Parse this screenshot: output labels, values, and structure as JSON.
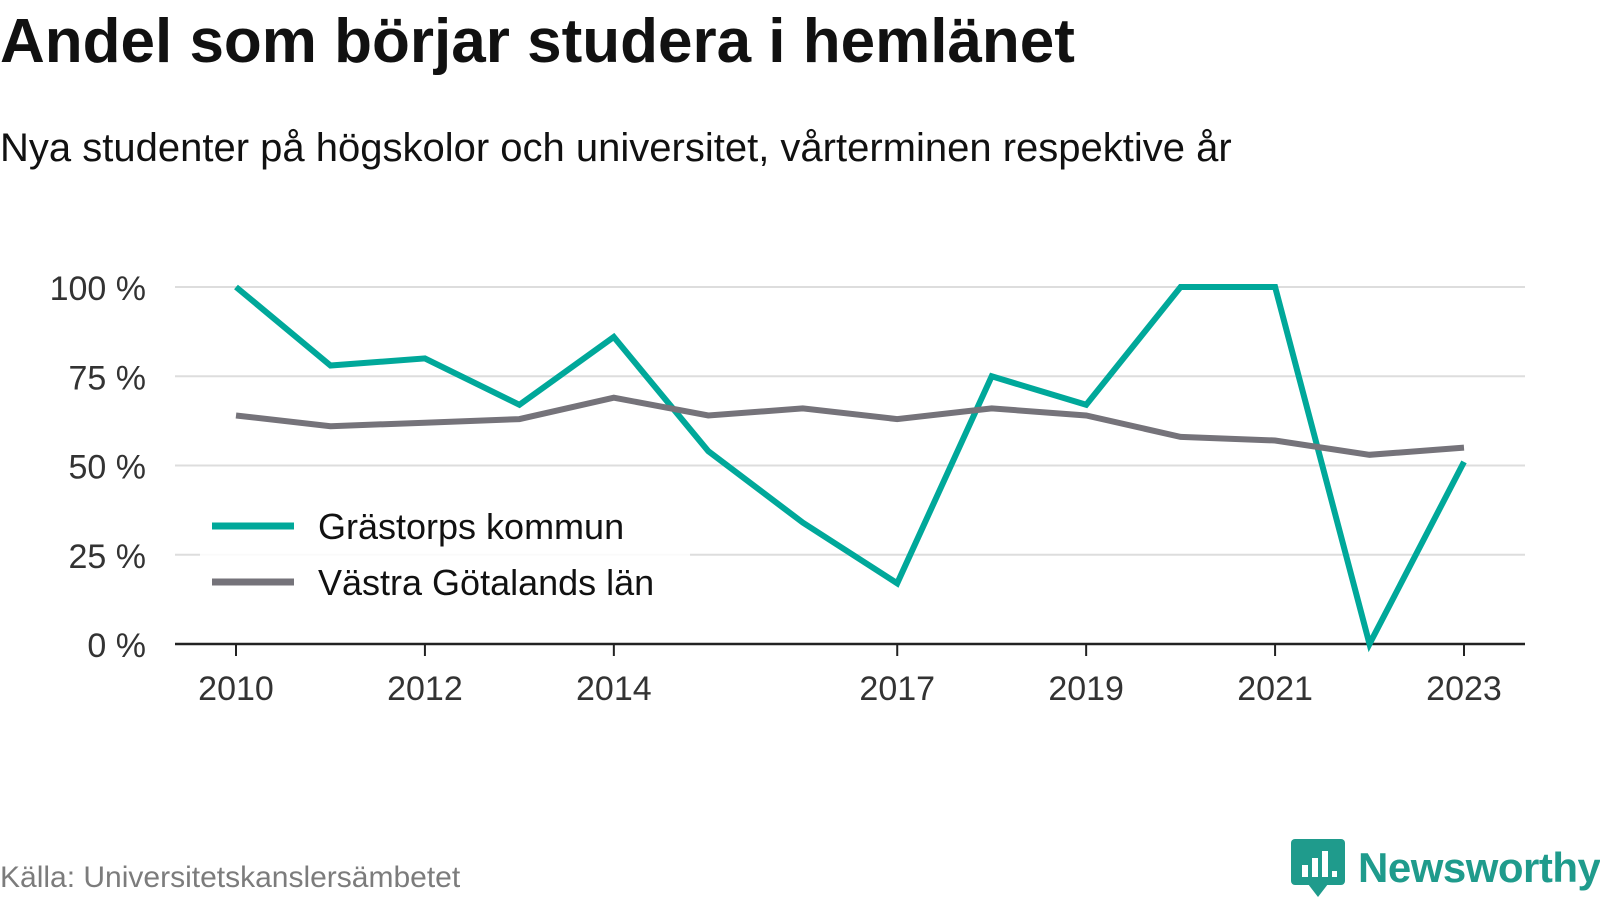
{
  "title": "Andel som börjar studera i hemlänet",
  "subtitle": "Nya studenter på högskolor och universitet, vårterminen respektive år",
  "source": "Källa: Universitetskanslersämbetet",
  "brand": {
    "name": "Newsworthy",
    "icon": "newsworthy-logo-icon",
    "color": "#1f9b8c"
  },
  "chart_data": {
    "type": "line",
    "x": [
      2010,
      2011,
      2012,
      2013,
      2014,
      2015,
      2016,
      2017,
      2018,
      2019,
      2020,
      2021,
      2022,
      2023
    ],
    "xticks": [
      2010,
      2012,
      2014,
      2017,
      2019,
      2021,
      2023
    ],
    "xtick_labels": [
      "2010",
      "2012",
      "2014",
      "2017",
      "2019",
      "2021",
      "2023"
    ],
    "ylim": [
      0,
      100
    ],
    "yticks": [
      0,
      25,
      50,
      75,
      100
    ],
    "ytick_labels": [
      "0 %",
      "25 %",
      "50 %",
      "75 %",
      "100 %"
    ],
    "grid": true,
    "legend_position": "bottom-left",
    "series": [
      {
        "name": "Grästorps kommun",
        "color": "#00a89a",
        "values": [
          100,
          78,
          80,
          67,
          86,
          54,
          34,
          17,
          75,
          67,
          100,
          100,
          0,
          51
        ]
      },
      {
        "name": "Västra Götalands län",
        "color": "#75737a",
        "values": [
          64,
          61,
          62,
          63,
          69,
          64,
          66,
          63,
          66,
          64,
          58,
          57,
          53,
          55
        ]
      }
    ]
  }
}
